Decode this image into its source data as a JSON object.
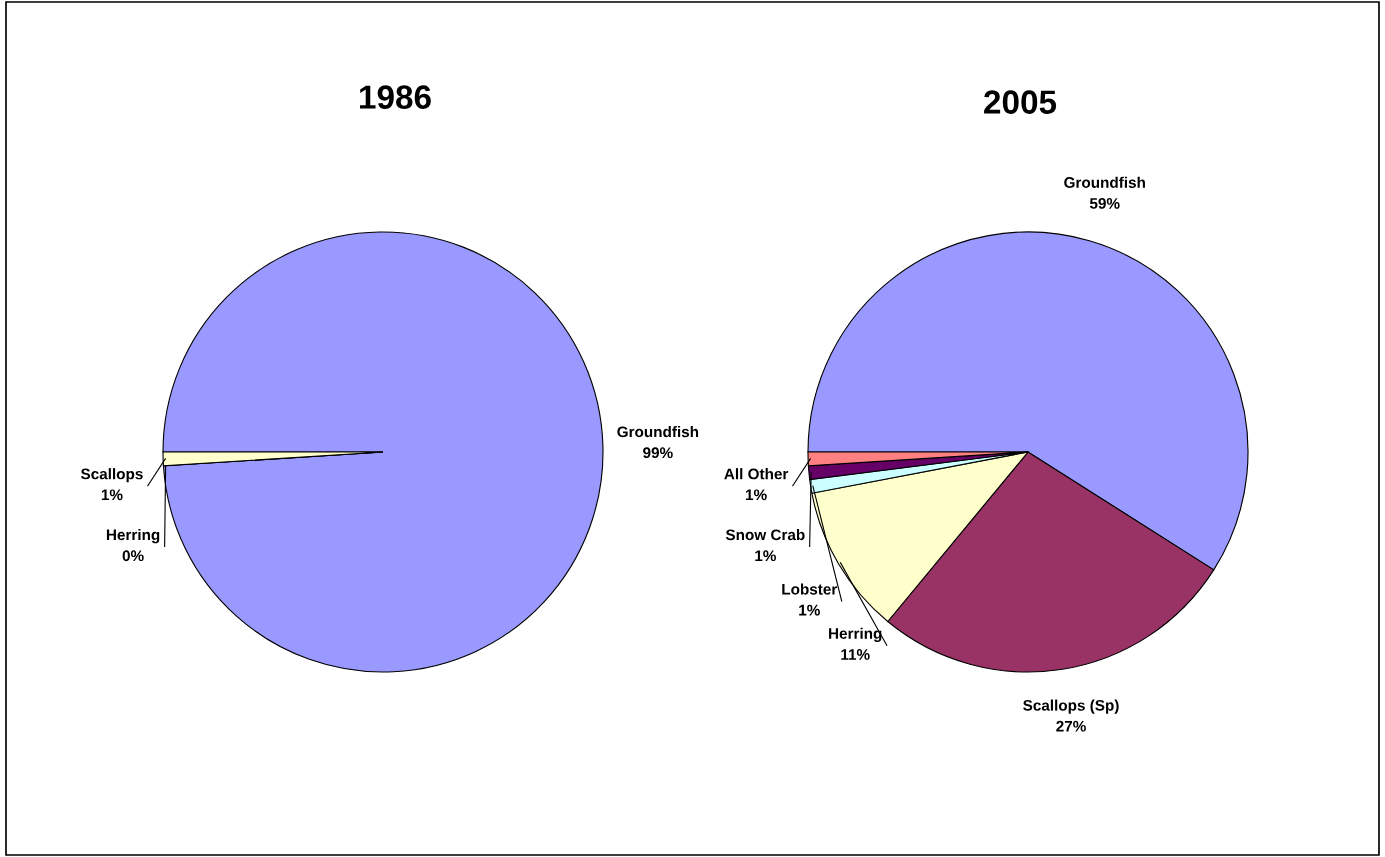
{
  "chart_data": [
    {
      "type": "pie",
      "title": "1986",
      "categories": [
        "Groundfish",
        "Herring",
        "Scallops"
      ],
      "values": [
        99,
        0,
        1
      ],
      "value_labels": [
        "99%",
        "0%",
        "1%"
      ],
      "colors": [
        "#9999ff",
        "#993366",
        "#ffffcc"
      ]
    },
    {
      "type": "pie",
      "title": "2005",
      "categories": [
        "Groundfish",
        "Scallops (Sp)",
        "Herring",
        "Lobster",
        "Snow Crab",
        "All Other"
      ],
      "values": [
        59,
        27,
        11,
        1,
        1,
        1
      ],
      "value_labels": [
        "59%",
        "27%",
        "11%",
        "1%",
        "1%",
        "1%"
      ],
      "colors": [
        "#9999ff",
        "#993366",
        "#ffffcc",
        "#ccffff",
        "#660066",
        "#ff8080"
      ]
    }
  ]
}
